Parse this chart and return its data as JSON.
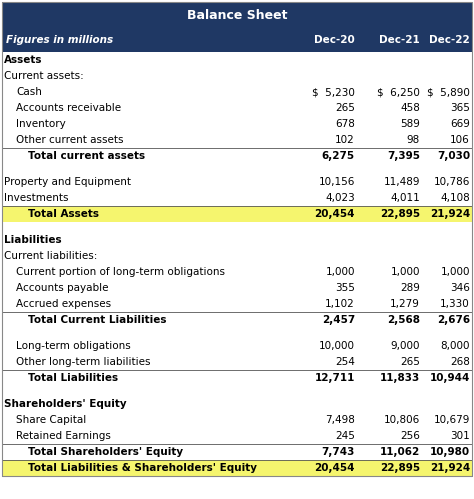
{
  "title": "Balance Sheet",
  "header_bg": "#1f3864",
  "header_text_color": "#ffffff",
  "header_italic_label": "Figures in millions",
  "columns": [
    "Dec-20",
    "Dec-21",
    "Dec-22"
  ],
  "yellow_bg": "#f5f56e",
  "rows": [
    {
      "label": "Assets",
      "values": [
        "",
        "",
        ""
      ],
      "style": "section_header",
      "indent": 0
    },
    {
      "label": "Current assets:",
      "values": [
        "",
        "",
        ""
      ],
      "style": "normal",
      "indent": 0
    },
    {
      "label": "Cash",
      "values": [
        "$  5,230",
        "$  6,250",
        "$  5,890"
      ],
      "style": "normal",
      "indent": 1,
      "dollar": true
    },
    {
      "label": "Accounts receivable",
      "values": [
        "265",
        "458",
        "365"
      ],
      "style": "normal",
      "indent": 1
    },
    {
      "label": "Inventory",
      "values": [
        "678",
        "589",
        "669"
      ],
      "style": "normal",
      "indent": 1
    },
    {
      "label": "Other current assets",
      "values": [
        "102",
        "98",
        "106"
      ],
      "style": "normal",
      "indent": 1
    },
    {
      "label": "Total current assets",
      "values": [
        "6,275",
        "7,395",
        "7,030"
      ],
      "style": "subtotal",
      "indent": 2,
      "top_border": true
    },
    {
      "label": "",
      "values": [
        "",
        "",
        ""
      ],
      "style": "blank",
      "indent": 0
    },
    {
      "label": "Property and Equipment",
      "values": [
        "10,156",
        "11,489",
        "10,786"
      ],
      "style": "normal",
      "indent": 0
    },
    {
      "label": "Investments",
      "values": [
        "4,023",
        "4,011",
        "4,108"
      ],
      "style": "normal",
      "indent": 0
    },
    {
      "label": "Total Assets",
      "values": [
        "20,454",
        "22,895",
        "21,924"
      ],
      "style": "total_yellow",
      "indent": 2,
      "top_border": true
    },
    {
      "label": "",
      "values": [
        "",
        "",
        ""
      ],
      "style": "blank",
      "indent": 0
    },
    {
      "label": "Liabilities",
      "values": [
        "",
        "",
        ""
      ],
      "style": "section_header",
      "indent": 0
    },
    {
      "label": "Current liabilities:",
      "values": [
        "",
        "",
        ""
      ],
      "style": "normal",
      "indent": 0
    },
    {
      "label": "Current portion of long-term obligations",
      "values": [
        "1,000",
        "1,000",
        "1,000"
      ],
      "style": "normal",
      "indent": 1
    },
    {
      "label": "Accounts payable",
      "values": [
        "355",
        "289",
        "346"
      ],
      "style": "normal",
      "indent": 1
    },
    {
      "label": "Accrued expenses",
      "values": [
        "1,102",
        "1,279",
        "1,330"
      ],
      "style": "normal",
      "indent": 1
    },
    {
      "label": "Total Current Liabilities",
      "values": [
        "2,457",
        "2,568",
        "2,676"
      ],
      "style": "subtotal",
      "indent": 2,
      "top_border": true
    },
    {
      "label": "",
      "values": [
        "",
        "",
        ""
      ],
      "style": "blank",
      "indent": 0
    },
    {
      "label": "Long-term obligations",
      "values": [
        "10,000",
        "9,000",
        "8,000"
      ],
      "style": "normal",
      "indent": 1
    },
    {
      "label": "Other long-term liabilities",
      "values": [
        "254",
        "265",
        "268"
      ],
      "style": "normal",
      "indent": 1
    },
    {
      "label": "Total Liabilities",
      "values": [
        "12,711",
        "11,833",
        "10,944"
      ],
      "style": "subtotal",
      "indent": 2,
      "top_border": true
    },
    {
      "label": "",
      "values": [
        "",
        "",
        ""
      ],
      "style": "blank",
      "indent": 0
    },
    {
      "label": "Shareholders' Equity",
      "values": [
        "",
        "",
        ""
      ],
      "style": "section_header",
      "indent": 0
    },
    {
      "label": "Share Capital",
      "values": [
        "7,498",
        "10,806",
        "10,679"
      ],
      "style": "normal",
      "indent": 1
    },
    {
      "label": "Retained Earnings",
      "values": [
        "245",
        "256",
        "301"
      ],
      "style": "normal",
      "indent": 1
    },
    {
      "label": "Total Shareholders' Equity",
      "values": [
        "7,743",
        "11,062",
        "10,980"
      ],
      "style": "subtotal",
      "indent": 2,
      "top_border": true
    },
    {
      "label": "Total Liabilities & Shareholders' Equity",
      "values": [
        "20,454",
        "22,895",
        "21,924"
      ],
      "style": "total_yellow",
      "indent": 2,
      "top_border": true
    }
  ]
}
